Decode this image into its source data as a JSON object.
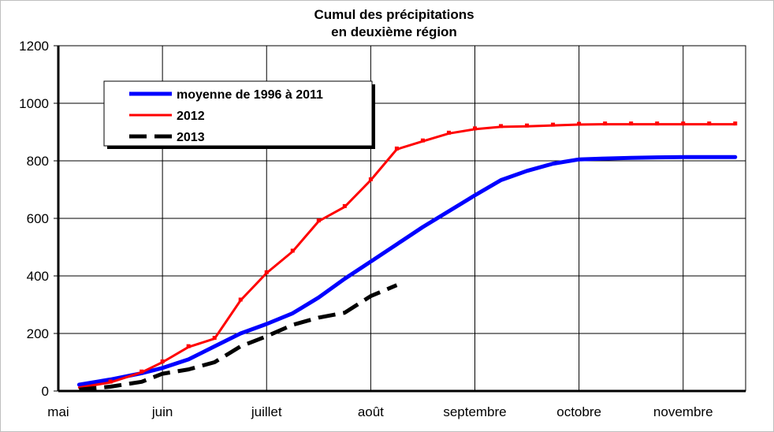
{
  "chart_data": {
    "type": "line",
    "title_lines": [
      "Cumul des précipitations",
      "en deuxième région"
    ],
    "xlabel": "",
    "ylabel": "",
    "xlim": [
      0,
      6.6
    ],
    "ylim": [
      0,
      1200
    ],
    "y_ticks": [
      0,
      200,
      400,
      600,
      800,
      1000,
      1200
    ],
    "x_ticks": [
      {
        "x": 0,
        "label": "mai"
      },
      {
        "x": 1,
        "label": "juin"
      },
      {
        "x": 2,
        "label": "juillet"
      },
      {
        "x": 3,
        "label": "août"
      },
      {
        "x": 4,
        "label": "septembre"
      },
      {
        "x": 5,
        "label": "octobre"
      },
      {
        "x": 6,
        "label": "novembre"
      }
    ],
    "grid": true,
    "legend": {
      "position": "top-left"
    },
    "series": [
      {
        "name": "moyenne de 1996 à 2011",
        "color": "#0000ff",
        "style": "solid",
        "x": [
          0.2,
          0.5,
          0.8,
          1.0,
          1.25,
          1.5,
          1.75,
          2.0,
          2.25,
          2.5,
          2.75,
          3.0,
          3.25,
          3.5,
          3.75,
          4.0,
          4.25,
          4.5,
          4.75,
          5.0,
          5.25,
          5.5,
          5.75,
          6.0,
          6.25,
          6.5
        ],
        "values": [
          22,
          40,
          62,
          80,
          110,
          155,
          200,
          233,
          270,
          325,
          390,
          450,
          510,
          570,
          625,
          680,
          733,
          765,
          790,
          805,
          808,
          810,
          812,
          813,
          813,
          813
        ]
      },
      {
        "name": "2012",
        "color": "#ff0000",
        "style": "solid-markers",
        "x": [
          0.2,
          0.5,
          0.8,
          1.0,
          1.25,
          1.5,
          1.75,
          2.0,
          2.25,
          2.5,
          2.75,
          3.0,
          3.25,
          3.5,
          3.75,
          4.0,
          4.25,
          4.5,
          4.75,
          5.0,
          5.25,
          5.5,
          5.75,
          6.0,
          6.25,
          6.5
        ],
        "values": [
          12,
          30,
          65,
          100,
          153,
          182,
          315,
          410,
          485,
          590,
          640,
          733,
          840,
          868,
          895,
          910,
          918,
          920,
          923,
          926,
          927,
          927,
          927,
          927,
          927,
          927
        ]
      },
      {
        "name": "2013",
        "color": "#000000",
        "style": "dashed",
        "x": [
          0.2,
          0.5,
          0.8,
          1.0,
          1.25,
          1.5,
          1.75,
          2.0,
          2.25,
          2.5,
          2.75,
          3.0,
          3.25
        ],
        "values": [
          5,
          15,
          32,
          60,
          75,
          100,
          155,
          190,
          230,
          255,
          272,
          330,
          368
        ]
      }
    ]
  }
}
